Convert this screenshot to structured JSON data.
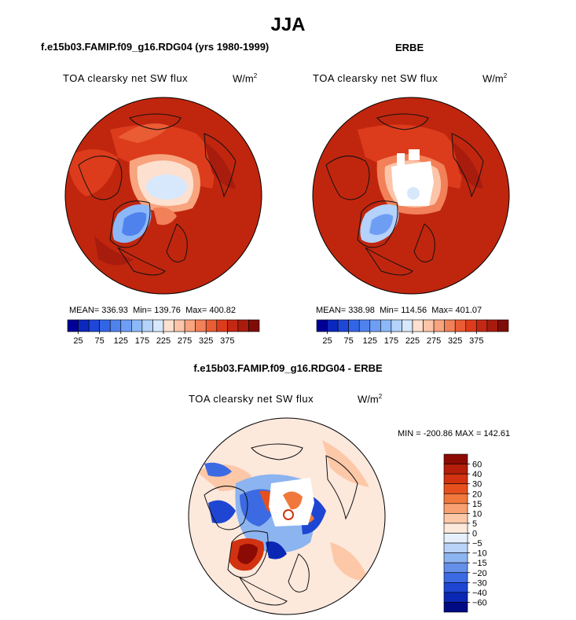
{
  "figure": {
    "title": "JJA",
    "panel_left_header": "f.e15b03.FAMIP.f09_g16.RDG04 (yrs 1980-1999)",
    "panel_right_header": "ERBE",
    "panel_diff_header": "f.e15b03.FAMIP.f09_g16.RDG04 - ERBE"
  },
  "colors": {
    "land_outline": "#111111",
    "missing": "#ffffff"
  },
  "chart_data": [
    {
      "type": "heatmap",
      "projection": "north-polar-stereographic",
      "variable": "TOA clearsky net SW flux",
      "units_base": "W/m",
      "units_exp": "2",
      "stats": {
        "mean_label": "MEAN=",
        "mean": "336.93",
        "min_label": "Min=",
        "min": "139.76",
        "max_label": "Max=",
        "max": "400.82"
      },
      "colorbar": {
        "orientation": "horizontal",
        "tick_labels": [
          "25",
          "75",
          "125",
          "175",
          "225",
          "275",
          "325",
          "375"
        ],
        "colors": [
          "#000096",
          "#0a28be",
          "#1e46d7",
          "#3264e6",
          "#5082ee",
          "#6e9ef4",
          "#8cb8f8",
          "#b4d2fa",
          "#d7e8fc",
          "#fde0cf",
          "#fcc4a8",
          "#f8a47e",
          "#f28058",
          "#ea5c34",
          "#dc3c1c",
          "#c42814",
          "#a81c0e",
          "#800c08"
        ]
      }
    },
    {
      "type": "heatmap",
      "projection": "north-polar-stereographic",
      "variable": "TOA clearsky net SW flux",
      "units_base": "W/m",
      "units_exp": "2",
      "stats": {
        "mean_label": "MEAN=",
        "mean": "338.98",
        "min_label": "Min=",
        "min": "114.56",
        "max_label": "Max=",
        "max": "401.07"
      },
      "colorbar": {
        "orientation": "horizontal",
        "tick_labels": [
          "25",
          "75",
          "125",
          "175",
          "225",
          "275",
          "325",
          "375"
        ],
        "colors": [
          "#000096",
          "#0a28be",
          "#1e46d7",
          "#3264e6",
          "#5082ee",
          "#6e9ef4",
          "#8cb8f8",
          "#b4d2fa",
          "#d7e8fc",
          "#fde0cf",
          "#fcc4a8",
          "#f8a47e",
          "#f28058",
          "#ea5c34",
          "#dc3c1c",
          "#c42814",
          "#a81c0e",
          "#800c08"
        ]
      }
    },
    {
      "type": "heatmap",
      "projection": "north-polar-stereographic",
      "variable": "TOA clearsky net SW flux",
      "units_base": "W/m",
      "units_exp": "2",
      "stats_line": "MIN = -200.86 MAX = 142.61",
      "colorbar": {
        "orientation": "vertical",
        "tick_labels": [
          "60",
          "40",
          "30",
          "20",
          "15",
          "10",
          "5",
          "0",
          "−5",
          "−10",
          "−15",
          "−20",
          "−30",
          "−40",
          "−60"
        ],
        "colors": [
          "#8c0a04",
          "#b41e0a",
          "#d2320f",
          "#e6501e",
          "#f0783c",
          "#f8a070",
          "#fcc8a8",
          "#fde8dc",
          "#e6f0fc",
          "#b9d2f8",
          "#8cb4f0",
          "#6490ea",
          "#3c6ae2",
          "#1e46d2",
          "#0a28b4",
          "#000a82"
        ]
      }
    }
  ]
}
